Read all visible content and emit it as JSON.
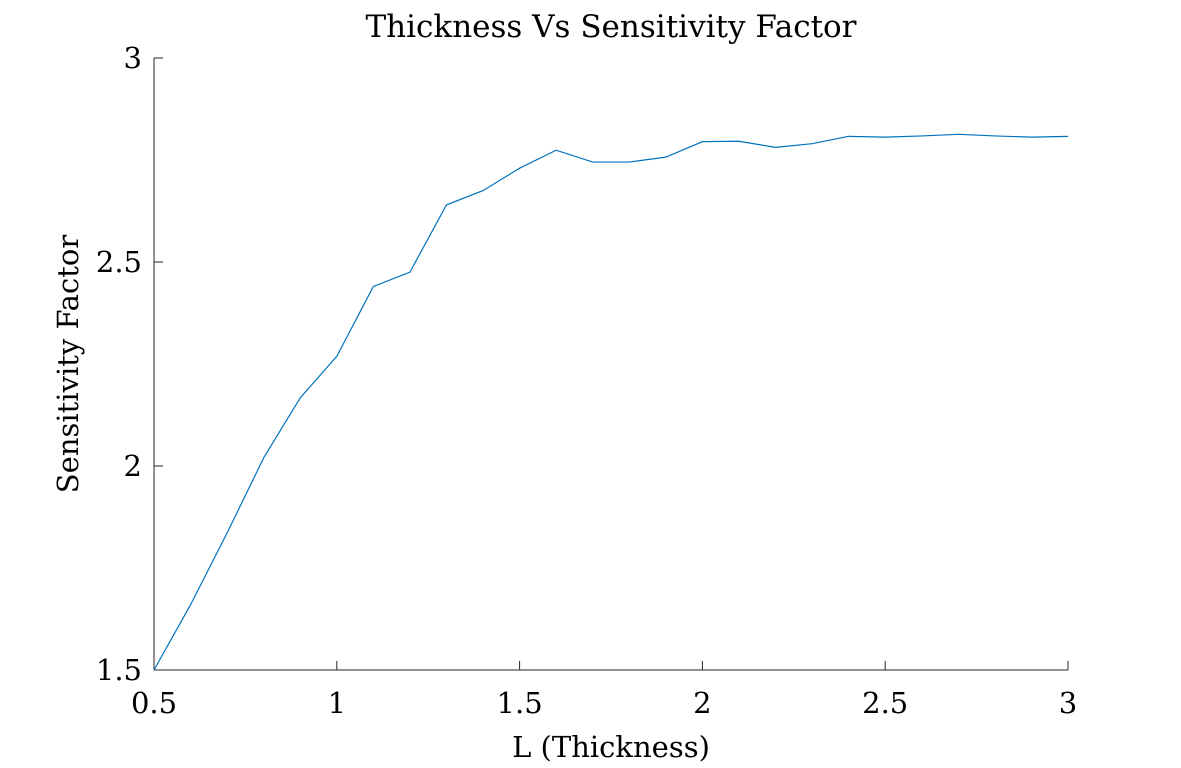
{
  "chart_data": {
    "type": "line",
    "title": "Thickness Vs Sensitivity Factor",
    "xlabel": "L (Thickness)",
    "ylabel": "Sensitivity Factor",
    "xlim": [
      0.5,
      3
    ],
    "ylim": [
      1.5,
      3
    ],
    "xticks": [
      0.5,
      1,
      1.5,
      2,
      2.5,
      3
    ],
    "xtick_labels": [
      "0.5",
      "1",
      "1.5",
      "2",
      "2.5",
      "3"
    ],
    "yticks": [
      1.5,
      2,
      2.5,
      3
    ],
    "ytick_labels": [
      "1.5",
      "2",
      "2.5",
      "3"
    ],
    "grid": false,
    "colors": {
      "series": "#0072BD",
      "axis": "#262626"
    },
    "series": [
      {
        "x": [
          0.5,
          0.6,
          0.7,
          0.8,
          0.9,
          1.0,
          1.1,
          1.2,
          1.3,
          1.4,
          1.5,
          1.6,
          1.7,
          1.8,
          1.9,
          2.0,
          2.1,
          2.2,
          2.3,
          2.4,
          2.5,
          2.6,
          2.7,
          2.8,
          2.9,
          3.0
        ],
        "values": [
          1.5,
          1.66,
          1.836,
          2.02,
          2.167,
          2.269,
          2.44,
          2.475,
          2.64,
          2.675,
          2.73,
          2.774,
          2.745,
          2.745,
          2.757,
          2.795,
          2.796,
          2.781,
          2.79,
          2.808,
          2.806,
          2.809,
          2.813,
          2.809,
          2.806,
          2.808
        ]
      }
    ]
  }
}
